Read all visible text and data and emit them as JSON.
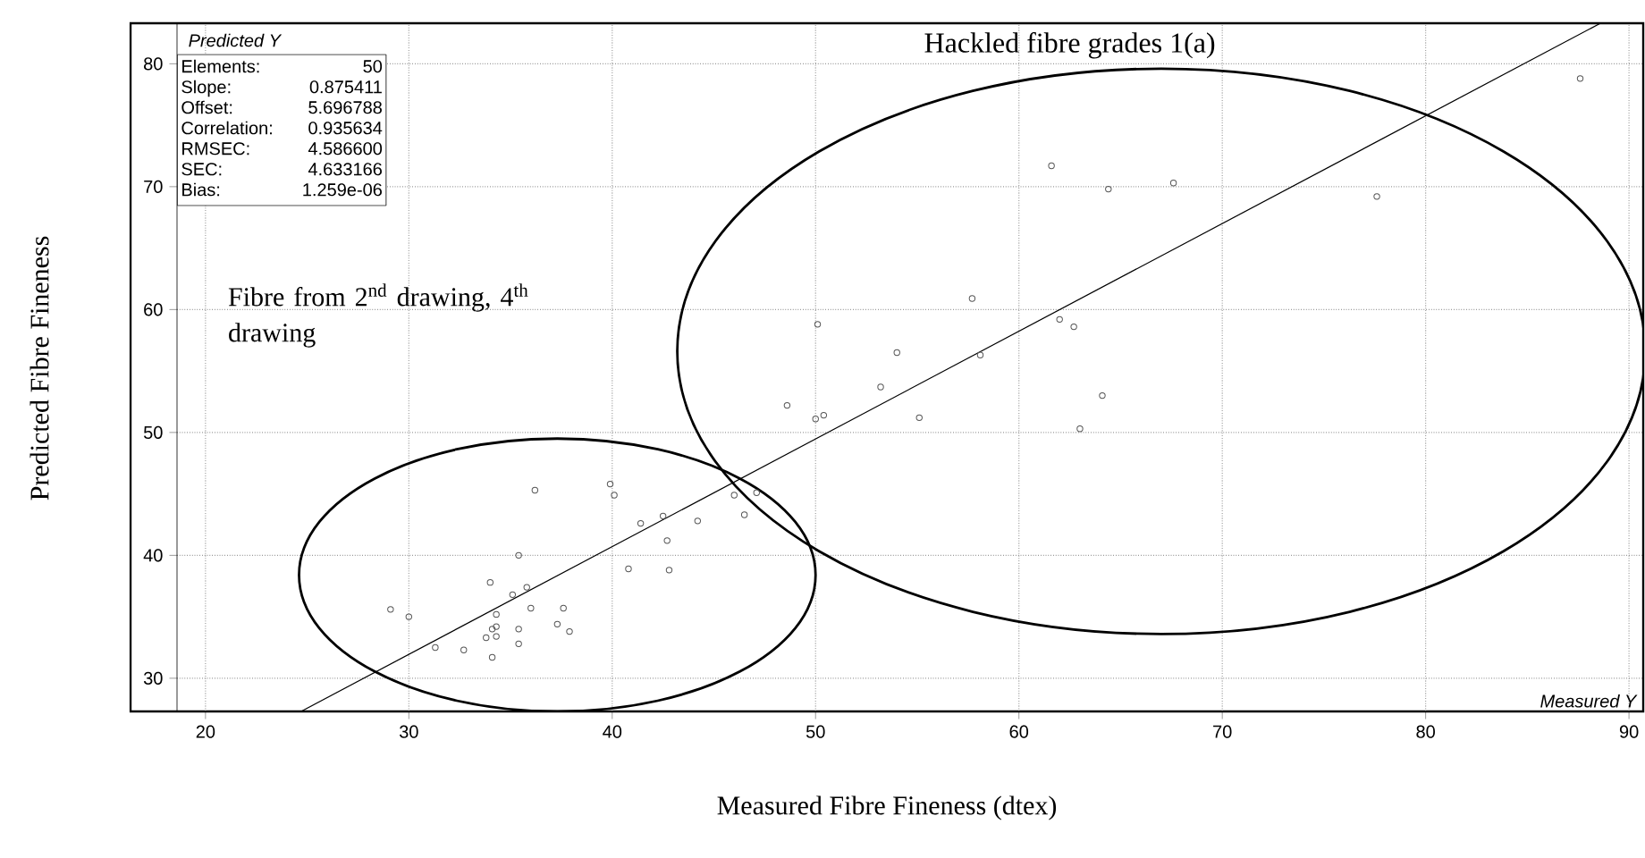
{
  "chart_data": {
    "type": "scatter",
    "xlabel": "Measured Fibre Fineness (dtex)",
    "ylabel": "Predicted Fibre Fineness",
    "xlim": [
      18.6,
      90.7
    ],
    "ylim": [
      27.3,
      83.3
    ],
    "xticks": [
      20,
      30,
      40,
      50,
      60,
      70,
      80,
      90
    ],
    "yticks": [
      30,
      40,
      50,
      60,
      70,
      80
    ],
    "grid": true,
    "marker": "circle",
    "series": [
      {
        "color": "#555555",
        "x": [
          48.6,
          50.0,
          50.4,
          36.2,
          39.9,
          40.1,
          46.0,
          46.5,
          47.1,
          41.4,
          42.5,
          44.2,
          42.7,
          35.4,
          40.8,
          42.8,
          34.0,
          35.8,
          35.1,
          29.1,
          30.0,
          34.3,
          36.0,
          37.6,
          37.3,
          37.9,
          35.4,
          35.4,
          34.1,
          34.3,
          33.8,
          34.3,
          34.1,
          31.3,
          32.7,
          87.6,
          61.6,
          64.4,
          67.6,
          77.6,
          57.7,
          50.1,
          62.0,
          62.7,
          54.0,
          58.1,
          53.2,
          64.1,
          55.1,
          63.0
        ],
        "values": [
          52.2,
          51.1,
          51.4,
          45.3,
          45.8,
          44.9,
          44.9,
          43.3,
          45.1,
          42.6,
          43.2,
          42.8,
          41.2,
          40.0,
          38.9,
          38.8,
          37.8,
          37.4,
          36.8,
          35.6,
          35.0,
          35.2,
          35.7,
          35.7,
          34.4,
          33.8,
          34.0,
          32.8,
          34.0,
          34.2,
          33.3,
          33.4,
          31.7,
          32.5,
          32.3,
          78.8,
          71.7,
          69.8,
          70.3,
          69.2,
          60.9,
          58.8,
          59.2,
          58.6,
          56.5,
          56.3,
          53.7,
          53.0,
          51.2,
          50.3
        ]
      },
      {
        "type": "line",
        "color": "#000000",
        "marker": "none",
        "line_style": "solid",
        "x": [
          24.7,
          88.6
        ],
        "values": [
          27.3,
          83.3
        ]
      }
    ],
    "annotations": [
      "Predicted Y",
      "Measured Y",
      "Elements:",
      "50",
      "Slope:",
      "0.875411",
      "Offset:",
      "5.696788",
      "Correlation:",
      "0.935634",
      "RMSEC:",
      "4.586600",
      "SEC:",
      "4.633166",
      "Bias:",
      "1.259e-06",
      "Hackled fibre grades 1(a)",
      "Fibre from 2$^{nd}$ drawing, 4$^{th}$ drawing"
    ]
  }
}
